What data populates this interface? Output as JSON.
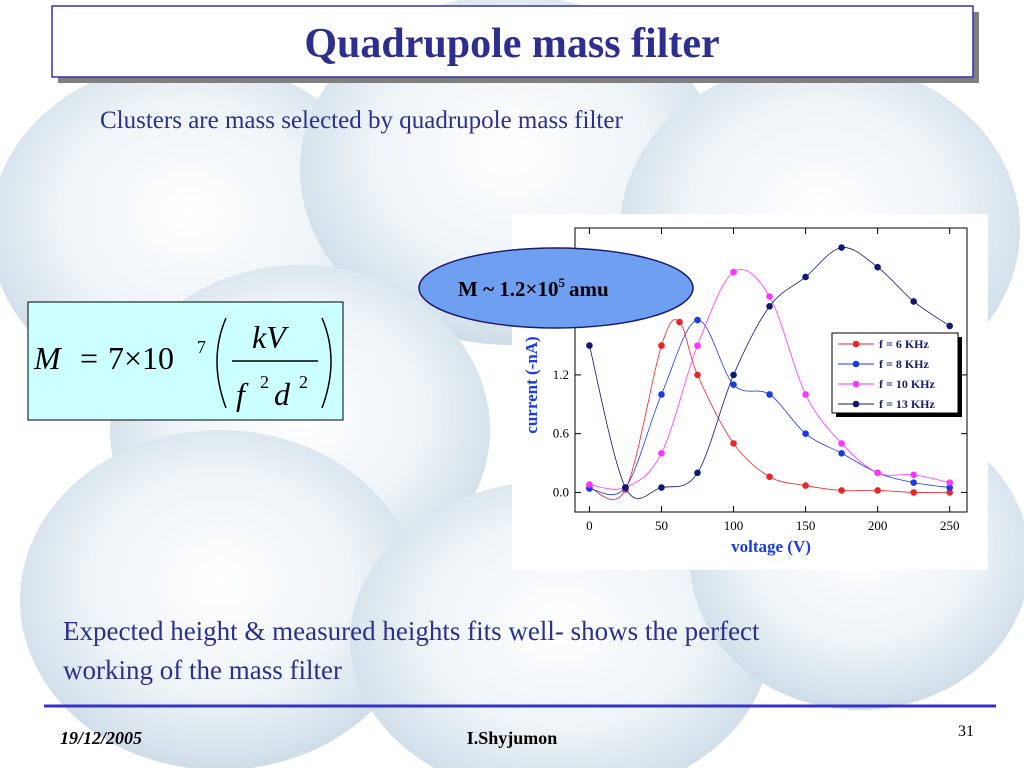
{
  "slide": {
    "title": "Quadrupole mass filter",
    "subtitle": "Clusters are mass selected by quadrupole mass filter",
    "formula": {
      "lhs": "M",
      "eq": "=",
      "coef": "7×10",
      "exp": "7",
      "num": "kV",
      "den_f": "f",
      "den_f_exp": "2",
      "den_d": "d",
      "den_d_exp": "2"
    },
    "annotation": {
      "text": "M ~ 1.2×10",
      "sup": "5",
      "unit": "amu"
    },
    "body": [
      "Expected height & measured heights fits well- shows the perfect",
      "working of the mass filter"
    ],
    "footer": {
      "date": "19/12/2005",
      "author": "I.Shyjumon",
      "page": "31"
    }
  },
  "chart_data": {
    "type": "line",
    "x_label": "voltage (V)",
    "y_label": "current (-nA)",
    "xlim": [
      -10,
      262
    ],
    "ylim": [
      -0.2,
      2.7
    ],
    "xticks": [
      0,
      50,
      100,
      150,
      200,
      250
    ],
    "yticks": [
      {
        "value": 0,
        "label": "0.0"
      },
      {
        "value": 0.6,
        "label": "0.6"
      },
      {
        "value": 1.2,
        "label": "1.2"
      }
    ],
    "series": [
      {
        "name": "f = 6 KHz",
        "color": "#e8262a",
        "x": [
          0,
          25,
          50,
          62.5,
          75,
          100,
          125,
          150,
          175,
          200,
          225,
          250
        ],
        "values": [
          0.05,
          0.03,
          1.5,
          1.74,
          1.2,
          0.5,
          0.16,
          0.07,
          0.02,
          0.02,
          0,
          0
        ]
      },
      {
        "name": "f = 8 KHz",
        "color": "#1a3be8",
        "x": [
          0,
          25,
          50,
          75,
          100,
          125,
          150,
          175,
          200,
          225,
          250
        ],
        "values": [
          0.04,
          0.05,
          1.0,
          1.76,
          1.1,
          1.0,
          0.6,
          0.4,
          0.2,
          0.1,
          0.05
        ]
      },
      {
        "name": "f = 10 KHz",
        "color": "#ff33ff",
        "x": [
          0,
          25,
          50,
          75,
          100,
          125,
          150,
          175,
          200,
          225,
          250
        ],
        "values": [
          0.08,
          0.05,
          0.4,
          1.5,
          2.25,
          2.0,
          1.0,
          0.5,
          0.2,
          0.18,
          0.1
        ]
      },
      {
        "name": "f = 13 KHz",
        "color": "#0d1a6e",
        "x": [
          0,
          25,
          50,
          75,
          100,
          125,
          150,
          175,
          200,
          225,
          250
        ],
        "values": [
          1.5,
          0.05,
          0.05,
          0.2,
          1.2,
          1.9,
          2.2,
          2.5,
          2.3,
          1.95,
          1.7
        ]
      }
    ]
  }
}
